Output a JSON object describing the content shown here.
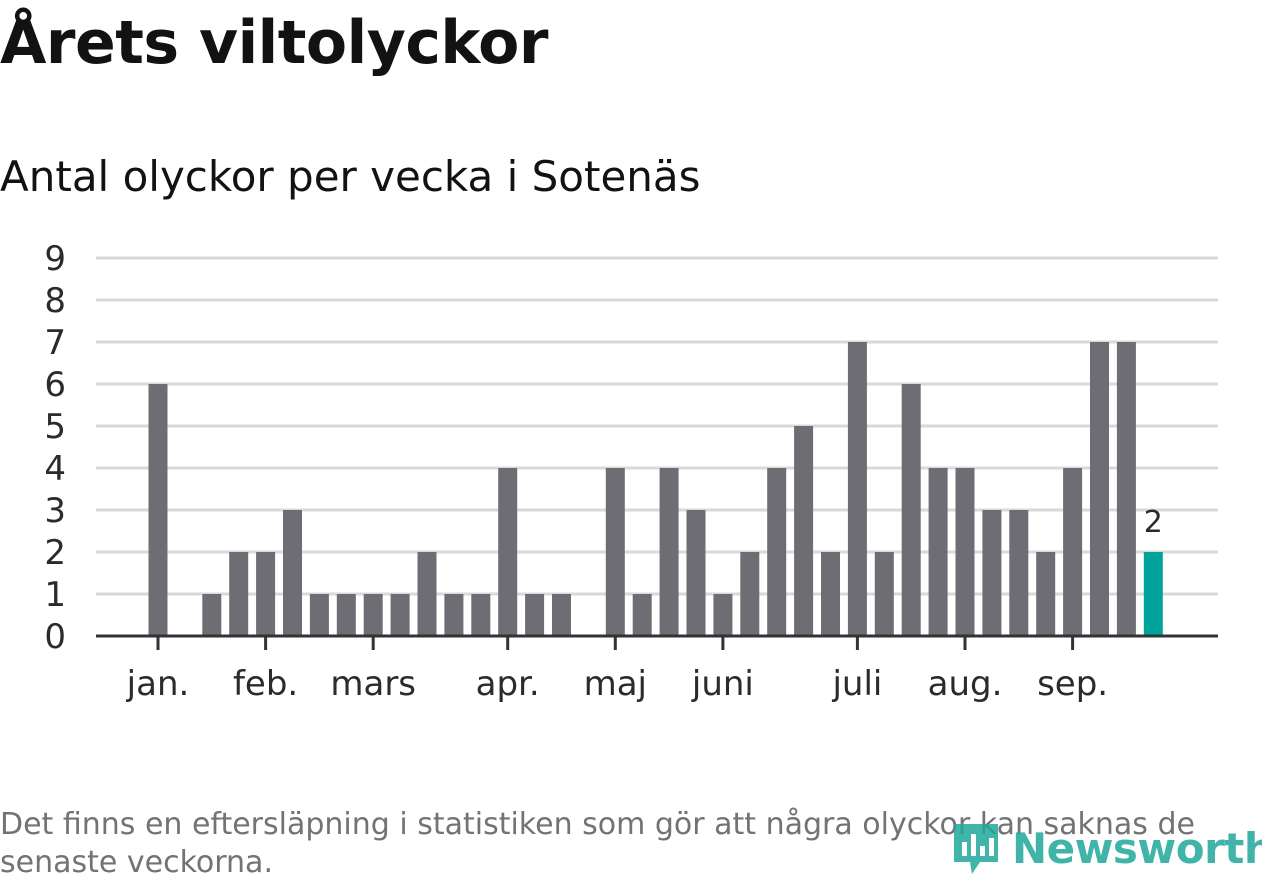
{
  "header": {
    "title": "Årets viltolyckor",
    "subtitle": "Antal olyckor per vecka i Sotenäs"
  },
  "footer": {
    "note": "Det finns en eftersläpning i statistiken som gör att några olyckor kan saknas de senaste veckorna.",
    "brand": "Newsworthy"
  },
  "colors": {
    "bar": "#6e6d73",
    "highlight": "#00a39a",
    "grid": "#d9d9d9",
    "axis": "#333333"
  },
  "chart_data": {
    "type": "bar",
    "title": "Antal olyckor per vecka i Sotenäs",
    "xlabel": "",
    "ylabel": "",
    "ylim": [
      0,
      9
    ],
    "yticks": [
      0,
      1,
      2,
      3,
      4,
      5,
      6,
      7,
      8,
      9
    ],
    "grid": true,
    "weeks": [
      1,
      2,
      3,
      4,
      5,
      6,
      7,
      8,
      9,
      10,
      11,
      12,
      13,
      14,
      15,
      16,
      17,
      18,
      19,
      20,
      21,
      22,
      23,
      24,
      25,
      26,
      27,
      28,
      29,
      30,
      31,
      32,
      33,
      34,
      35,
      36,
      37,
      38
    ],
    "values": [
      6,
      0,
      1,
      2,
      2,
      3,
      1,
      1,
      1,
      1,
      2,
      1,
      1,
      4,
      1,
      1,
      0,
      4,
      1,
      4,
      3,
      1,
      2,
      4,
      5,
      2,
      7,
      2,
      6,
      4,
      4,
      3,
      3,
      2,
      4,
      7,
      7,
      2
    ],
    "highlight_index": 37,
    "highlight_label": "2",
    "month_ticks": [
      {
        "label": "jan.",
        "week": 1
      },
      {
        "label": "feb.",
        "week": 5
      },
      {
        "label": "mars",
        "week": 9
      },
      {
        "label": "apr.",
        "week": 14
      },
      {
        "label": "maj",
        "week": 18
      },
      {
        "label": "juni",
        "week": 22
      },
      {
        "label": "juli",
        "week": 27
      },
      {
        "label": "aug.",
        "week": 31
      },
      {
        "label": "sep.",
        "week": 35
      }
    ]
  }
}
